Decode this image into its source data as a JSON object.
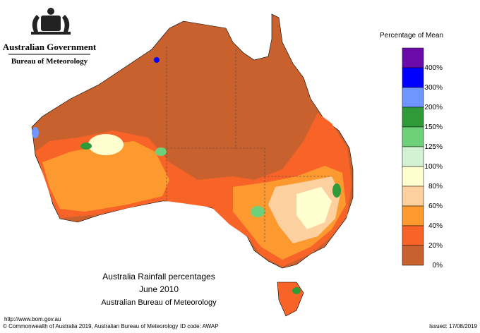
{
  "header": {
    "government": "Australian Government",
    "bureau": "Bureau of Meteorology"
  },
  "legend": {
    "title": "Percentage of Mean",
    "items": [
      {
        "label": "400%",
        "color": "#6a0aa8"
      },
      {
        "label": "300%",
        "color": "#0000ff"
      },
      {
        "label": "200%",
        "color": "#6f95ff"
      },
      {
        "label": "150%",
        "color": "#2e9a38"
      },
      {
        "label": "125%",
        "color": "#6fd07a"
      },
      {
        "label": "100%",
        "color": "#d3f2d3"
      },
      {
        "label": "80%",
        "color": "#ffffd0"
      },
      {
        "label": "60%",
        "color": "#fdd0a0"
      },
      {
        "label": "40%",
        "color": "#fc9a30"
      },
      {
        "label": "20%",
        "color": "#f86428"
      },
      {
        "label": "0%",
        "color": "#c8612e"
      }
    ]
  },
  "map_title": {
    "line1": "Australia Rainfall percentages",
    "line2": "June 2010",
    "line3": "Australian Bureau of Meteorology"
  },
  "footer": {
    "url": "http://www.bom.gov.au",
    "copyright": "© Commonwealth of Australia 2019, Australian Bureau of Meteorology",
    "id": "ID code: AWAP",
    "issued": "Issued: 17/08/2019"
  }
}
